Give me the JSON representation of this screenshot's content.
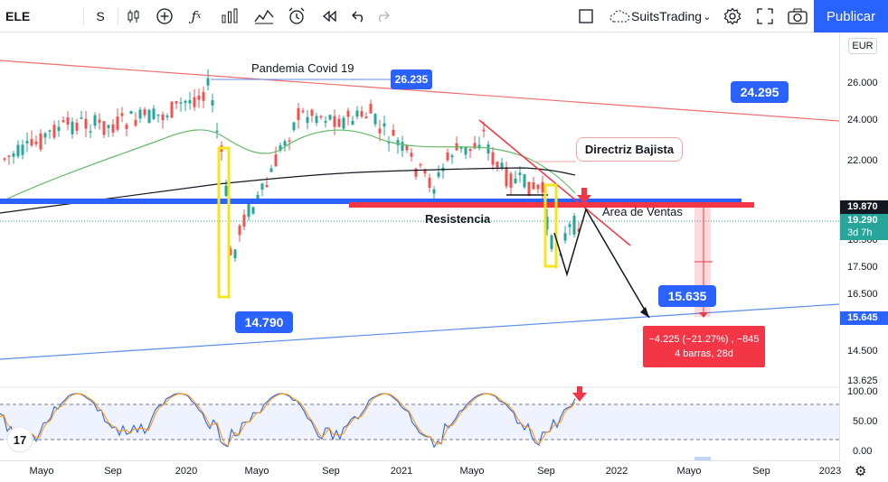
{
  "toolbar": {
    "symbol": "ELE",
    "interval": "S",
    "layout_name": "SuitsTrading",
    "publish_label": "Publicar",
    "icons": [
      "candles-icon",
      "add-icon",
      "fx-icon",
      "bars-icon",
      "templates-icon",
      "alert-icon",
      "replay-icon",
      "undo-icon",
      "redo-icon",
      "square-icon",
      "cloud-icon",
      "settings-icon",
      "fullscreen-icon",
      "camera-icon"
    ]
  },
  "currency": "EUR",
  "annotations": {
    "covid": "Pandemia Covid 19",
    "directriz": "Directriz Bajista",
    "resistencia": "Resistencia",
    "area_ventas": "Area de Ventas",
    "callout_high": "26.235",
    "callout_tri": "24.295",
    "callout_low": "14.790",
    "callout_target": "15.635",
    "measure_line1": "−4.225 (−21.27%) , −845",
    "measure_line2": "4 barras, 28d"
  },
  "price_axis": {
    "labels": [
      "26.000",
      "24.000",
      "22.000",
      "18.500",
      "17.500",
      "16.500",
      "14.500",
      "13.625"
    ],
    "tag_resistance": "19.870",
    "tag_last": "19.290",
    "tag_countdown": "3d 7h",
    "tag_support": "15.645"
  },
  "osc_axis": {
    "labels": [
      "100.00",
      "50.00",
      "0.00"
    ]
  },
  "time_axis": {
    "labels": [
      "Mayo",
      "Sep",
      "2020",
      "Mayo",
      "Sep",
      "2021",
      "Mayo",
      "Sep",
      "2022",
      "Mayo",
      "Sep",
      "2023"
    ]
  },
  "colors": {
    "up": "#26a69a",
    "down": "#ef5350",
    "accent": "#2962ff",
    "red": "#f23645"
  }
}
